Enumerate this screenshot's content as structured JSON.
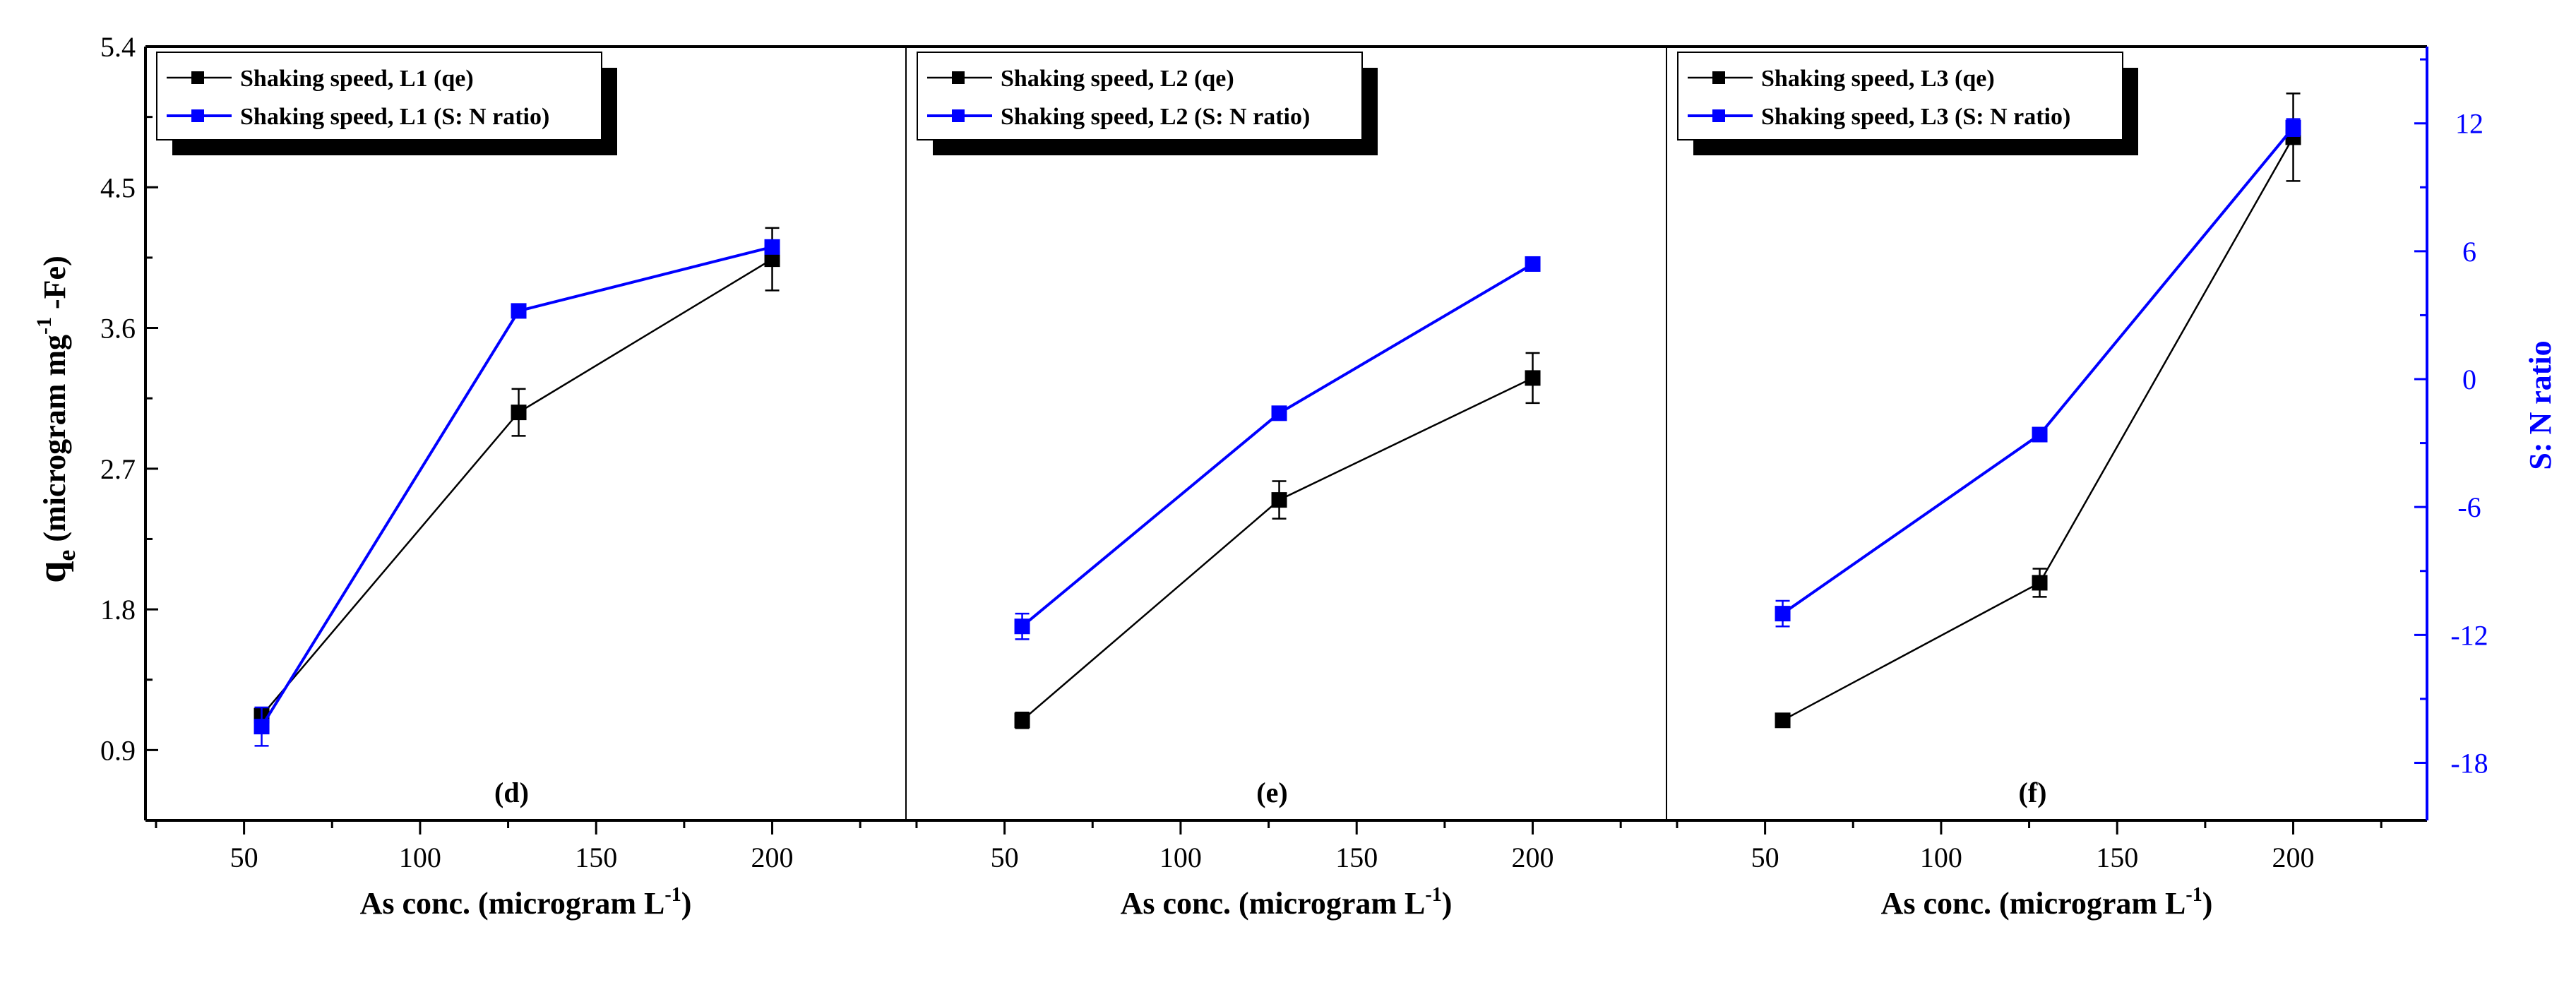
{
  "chart_data": {
    "type": "line",
    "layout": "three panels side by side sharing a y-axis on the left and a secondary y-axis on the right",
    "left_axis": {
      "label_main": "q",
      "label_sub": "e",
      "label_rest": " (microgram mg",
      "label_sup": "-1",
      "label_end": " -Fe)",
      "ylim": [
        0.45,
        5.4
      ],
      "ticks": [
        0.9,
        1.8,
        2.7,
        3.6,
        4.5,
        5.4
      ],
      "tick_labels": [
        "0.9",
        "1.8",
        "2.7",
        "3.6",
        "4.5",
        "5.4"
      ],
      "color": "#000000"
    },
    "right_axis": {
      "label": "S: N ratio",
      "ylim": [
        -20.7,
        15.6
      ],
      "ticks": [
        -18,
        -12,
        -6,
        0,
        6,
        12
      ],
      "tick_labels": [
        "-18",
        "-12",
        "-6",
        "0",
        "6",
        "12"
      ],
      "color": "#0000ff"
    },
    "x_axis": {
      "label_main": "As conc. (microgram L",
      "label_sup": "-1",
      "label_end": ")",
      "xlim": [
        22,
        238
      ],
      "ticks": [
        50,
        100,
        150,
        200
      ],
      "tick_labels": [
        "50",
        "100",
        "150",
        "200"
      ]
    },
    "panels": [
      {
        "label": "(d)",
        "series": [
          {
            "name": "Shaking speed, L1 (qe)",
            "axis": "left",
            "color": "#000000",
            "x": [
              55,
              128,
              200
            ],
            "y": [
              1.12,
              3.06,
              4.04
            ],
            "error": [
              0.05,
              0.15,
              0.2
            ]
          },
          {
            "name": "Shaking speed, L1 (S: N ratio)",
            "axis": "right",
            "color": "#0000ff",
            "x": [
              55,
              128,
              200
            ],
            "y": [
              -16.3,
              3.2,
              6.2
            ],
            "error": [
              0.9,
              0.3,
              0.2
            ]
          }
        ]
      },
      {
        "label": "(e)",
        "series": [
          {
            "name": "Shaking speed, L2 (qe)",
            "axis": "left",
            "color": "#000000",
            "x": [
              55,
              128,
              200
            ],
            "y": [
              1.09,
              2.5,
              3.28
            ],
            "error": [
              0.05,
              0.12,
              0.16
            ]
          },
          {
            "name": "Shaking speed, L2 (S: N ratio)",
            "axis": "right",
            "color": "#0000ff",
            "x": [
              55,
              128,
              200
            ],
            "y": [
              -11.6,
              -1.6,
              5.4
            ],
            "error": [
              0.6,
              0.2,
              0.2
            ]
          }
        ]
      },
      {
        "label": "(f)",
        "series": [
          {
            "name": "Shaking speed, L3 (qe)",
            "axis": "left",
            "color": "#000000",
            "x": [
              55,
              128,
              200
            ],
            "y": [
              1.09,
              1.97,
              4.82
            ],
            "error": [
              0.04,
              0.09,
              0.28
            ]
          },
          {
            "name": "Shaking speed, L3 (S: N ratio)",
            "axis": "right",
            "color": "#0000ff",
            "x": [
              55,
              128,
              200
            ],
            "y": [
              -11.0,
              -2.6,
              11.8
            ],
            "error": [
              0.6,
              0.2,
              0.4
            ]
          }
        ]
      }
    ]
  }
}
